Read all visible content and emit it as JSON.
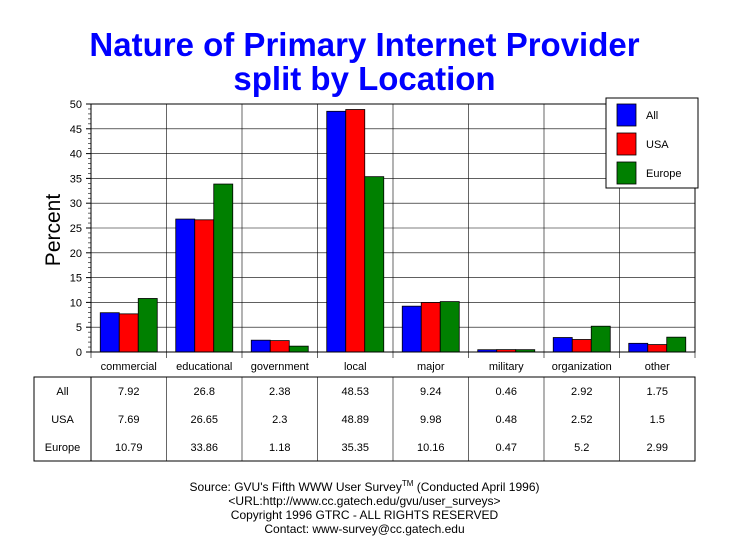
{
  "chart_data": {
    "type": "bar",
    "title": "Nature of Primary Internet Provider",
    "subtitle": "split by Location",
    "ylabel": "Percent",
    "xlabel": "",
    "ylim": [
      0,
      50
    ],
    "yticks": [
      0,
      5,
      10,
      15,
      20,
      25,
      30,
      35,
      40,
      45,
      50
    ],
    "grid": true,
    "legend_position": "top-right",
    "categories": [
      "commercial",
      "educational",
      "government",
      "local",
      "major",
      "military",
      "organization",
      "other"
    ],
    "series": [
      {
        "name": "All",
        "color": "#0000ff",
        "values": [
          7.92,
          26.8,
          2.38,
          48.53,
          9.24,
          0.46,
          2.92,
          1.75
        ]
      },
      {
        "name": "USA",
        "color": "#ff0000",
        "values": [
          7.69,
          26.65,
          2.3,
          48.89,
          9.98,
          0.48,
          2.52,
          1.5
        ]
      },
      {
        "name": "Europe",
        "color": "#008000",
        "values": [
          10.79,
          33.86,
          1.18,
          35.35,
          10.16,
          0.47,
          5.2,
          2.99
        ]
      }
    ],
    "table_values": [
      [
        "7.92",
        "26.8",
        "2.38",
        "48.53",
        "9.24",
        "0.46",
        "2.92",
        "1.75"
      ],
      [
        "7.69",
        "26.65",
        "2.3",
        "48.89",
        "9.98",
        "0.48",
        "2.52",
        "1.5"
      ],
      [
        "10.79",
        "33.86",
        "1.18",
        "35.35",
        "10.16",
        "0.47",
        "5.2",
        "2.99"
      ]
    ]
  },
  "footer": {
    "source_prefix": "Source: GVU's Fifth WWW User Survey",
    "tm": "TM",
    "source_suffix": " (Conducted April 1996)",
    "url": "<URL:http://www.cc.gatech.edu/gvu/user_surveys>",
    "copyright": "Copyright 1996 GTRC -  ALL RIGHTS RESERVED",
    "contact": "Contact: www-survey@cc.gatech.edu"
  }
}
